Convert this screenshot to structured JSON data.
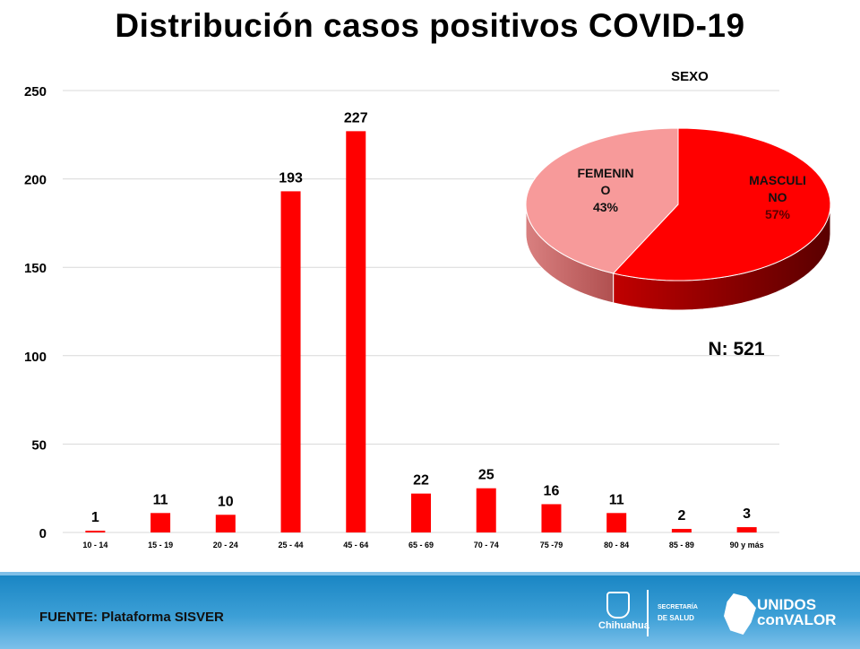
{
  "chart_data": [
    {
      "type": "bar",
      "title": "Distribución  casos positivos COVID-19",
      "categories": [
        "10 - 14",
        "15 - 19",
        "20 - 24",
        "25 - 44",
        "45 - 64",
        "65 - 69",
        "70 - 74",
        "75 -79",
        "80 - 84",
        "85 - 89",
        "90 y más"
      ],
      "values": [
        1,
        11,
        10,
        193,
        227,
        22,
        25,
        16,
        11,
        2,
        3
      ],
      "yticks": [
        0,
        50,
        100,
        150,
        200,
        250
      ],
      "ylim": [
        0,
        250
      ],
      "grid": true,
      "color": "#ff0000",
      "xlabel": "",
      "ylabel": ""
    },
    {
      "type": "pie",
      "title": "SEXO",
      "slices": [
        {
          "label_line1": "MASCULI",
          "label_line2": "NO",
          "pct_label": "57%",
          "value": 57,
          "color": "#ff0000"
        },
        {
          "label_line1": "FEMENIN",
          "label_line2": "O",
          "pct_label": "43%",
          "value": 43,
          "color": "#f79a9a"
        }
      ],
      "annotation": "N: 521"
    }
  ],
  "footer": {
    "source": "FUENTE: Plataforma SISVER",
    "logo1": "Chihuahua",
    "logo2_line1": "SECRETARÍA",
    "logo2_line2": "DE SALUD",
    "logo3_line1": "UNIDOS",
    "logo3_line2": "conVALOR"
  }
}
